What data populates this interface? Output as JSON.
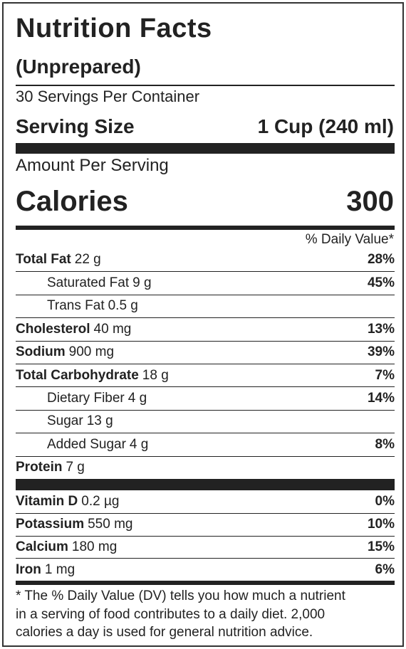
{
  "header": {
    "title": "Nutrition Facts",
    "subtitle": "(Unprepared)",
    "servings": "30 Servings Per Container",
    "serving_size_label": "Serving Size",
    "serving_size": "1 Cup (240 ml)"
  },
  "calories": {
    "amount_label": "Amount Per Serving",
    "label": "Calories",
    "value": "300"
  },
  "dv_header": "% Daily Value*",
  "nutrients": [
    {
      "name": "Total Fat",
      "amount": "22 g",
      "dv": "28%"
    },
    {
      "name": "Saturated Fat",
      "amount": "9 g",
      "dv": "45%"
    },
    {
      "name": "Trans Fat",
      "amount": "0.5 g"
    },
    {
      "name": "Cholesterol",
      "amount": "40 mg",
      "dv": "13%"
    },
    {
      "name": "Sodium",
      "amount": "900 mg",
      "dv": "39%"
    },
    {
      "name": "Total Carbohydrate",
      "amount": "18 g",
      "dv": "7%"
    },
    {
      "name": "Dietary Fiber",
      "amount": "4 g",
      "dv": "14%"
    },
    {
      "name": "Sugar",
      "amount": "13 g"
    },
    {
      "name": "Added Sugar",
      "amount": "4 g",
      "dv": "8%"
    },
    {
      "name": "Protein",
      "amount": "7 g"
    }
  ],
  "vitamins": [
    {
      "name": "Vitamin D",
      "amount": "0.2 µg",
      "dv": "0%"
    },
    {
      "name": "Potassium",
      "amount": "550 mg",
      "dv": "10%"
    },
    {
      "name": "Calcium",
      "amount": "180 mg",
      "dv": "15%"
    },
    {
      "name": "Iron",
      "amount": "1 mg",
      "dv": "6%"
    }
  ],
  "footnote": [
    "* The % Daily Value (DV) tells you how much a nutrient",
    "in a serving of food contributes to a daily diet. 2,000",
    "calories a day is used for general nutrition advice."
  ]
}
